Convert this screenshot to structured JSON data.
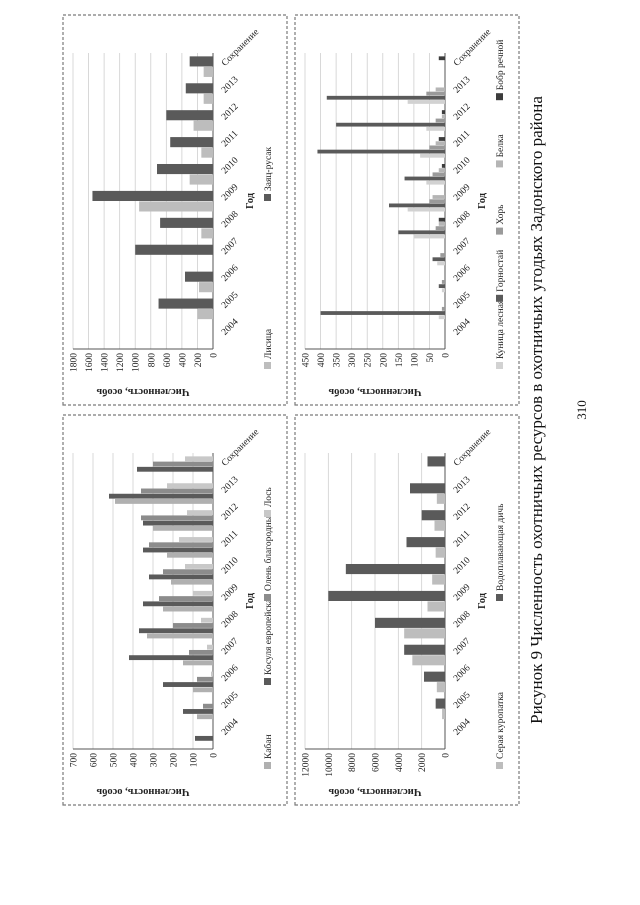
{
  "caption": "Рисунок 9 Численность охотничьих ресурсов в охотничьих угодьях Задонского района",
  "page_number": "310",
  "chart_data": [
    {
      "type": "bar",
      "id": "ungulates",
      "xlabel": "Год",
      "ylabel": "Численность, особь",
      "ylim": [
        0,
        700
      ],
      "yticks": [
        0,
        100,
        200,
        300,
        400,
        500,
        600,
        700
      ],
      "categories": [
        "2004",
        "2005",
        "2006",
        "2007",
        "2008",
        "2009",
        "2010",
        "2011",
        "2012",
        "2013",
        "Сохранение"
      ],
      "legend_position": "bottom",
      "series": [
        {
          "name": "Кабан",
          "color": "#b0b0b0",
          "values": [
            0,
            80,
            100,
            150,
            330,
            250,
            210,
            230,
            300,
            490,
            0
          ]
        },
        {
          "name": "Косуля европейская",
          "color": "#5a5a5a",
          "values": [
            90,
            150,
            250,
            420,
            370,
            350,
            320,
            350,
            350,
            520,
            380
          ]
        },
        {
          "name": "Олень благородный",
          "color": "#8c8c8c",
          "values": [
            0,
            50,
            80,
            120,
            200,
            270,
            250,
            320,
            360,
            360,
            300
          ]
        },
        {
          "name": "Лось",
          "color": "#c8c8c8",
          "values": [
            0,
            0,
            10,
            30,
            60,
            100,
            140,
            170,
            130,
            230,
            140
          ]
        }
      ]
    },
    {
      "type": "bar",
      "id": "fox_hare",
      "xlabel": "Год",
      "ylabel": "Численность, особь",
      "ylim": [
        0,
        1800
      ],
      "yticks": [
        0,
        200,
        400,
        600,
        800,
        1000,
        1200,
        1400,
        1600,
        1800
      ],
      "categories": [
        "2004",
        "2005",
        "2006",
        "2007",
        "2008",
        "2009",
        "2010",
        "2011",
        "2012",
        "2013",
        "Сохранение"
      ],
      "legend_position": "bottom",
      "series": [
        {
          "name": "Лисица",
          "color": "#bdbdbd",
          "values": [
            0,
            200,
            180,
            0,
            150,
            950,
            300,
            150,
            250,
            120,
            120
          ]
        },
        {
          "name": "Заяц-русак",
          "color": "#5a5a5a",
          "values": [
            0,
            700,
            360,
            1000,
            680,
            1550,
            720,
            550,
            600,
            350,
            300
          ]
        }
      ]
    },
    {
      "type": "bar",
      "id": "birds",
      "xlabel": "Год",
      "ylabel": "Численность, особь",
      "ylim": [
        0,
        12000
      ],
      "yticks": [
        0,
        2000,
        4000,
        6000,
        8000,
        10000,
        12000
      ],
      "categories": [
        "2004",
        "2005",
        "2006",
        "2007",
        "2008",
        "2009",
        "2010",
        "2011",
        "2012",
        "2013",
        "Сохранение"
      ],
      "legend_position": "bottom",
      "series": [
        {
          "name": "Серая куропатка",
          "color": "#bdbdbd",
          "values": [
            0,
            250,
            700,
            2800,
            3500,
            1500,
            1100,
            800,
            900,
            700,
            0
          ]
        },
        {
          "name": "Водоплавающая дичь",
          "color": "#5a5a5a",
          "values": [
            0,
            800,
            1800,
            3500,
            6000,
            10000,
            8500,
            3300,
            2000,
            3000,
            1500
          ]
        }
      ]
    },
    {
      "type": "bar",
      "id": "furbearers",
      "xlabel": "Год",
      "ylabel": "Численность, особь",
      "ylim": [
        0,
        450
      ],
      "yticks": [
        0,
        50,
        100,
        150,
        200,
        250,
        300,
        350,
        400,
        450
      ],
      "categories": [
        "2004",
        "2005",
        "2006",
        "2007",
        "2008",
        "2009",
        "2010",
        "2011",
        "2012",
        "2013",
        "Сохранение"
      ],
      "legend_position": "bottom",
      "series": [
        {
          "name": "Куница лесная",
          "color": "#d2d2d2",
          "values": [
            0,
            20,
            10,
            25,
            100,
            120,
            60,
            80,
            60,
            120,
            0
          ]
        },
        {
          "name": "Горностай",
          "color": "#5a5a5a",
          "values": [
            0,
            400,
            20,
            40,
            150,
            180,
            130,
            410,
            350,
            380,
            0
          ]
        },
        {
          "name": "Хорь",
          "color": "#9a9a9a",
          "values": [
            0,
            10,
            10,
            15,
            30,
            50,
            40,
            50,
            30,
            60,
            0
          ]
        },
        {
          "name": "Белка",
          "color": "#b5b5b5",
          "values": [
            0,
            0,
            0,
            0,
            20,
            40,
            20,
            30,
            10,
            30,
            0
          ]
        },
        {
          "name": "Бобр речной",
          "color": "#3c3c3c",
          "values": [
            0,
            0,
            0,
            0,
            20,
            0,
            10,
            20,
            10,
            0,
            20
          ]
        }
      ]
    }
  ]
}
